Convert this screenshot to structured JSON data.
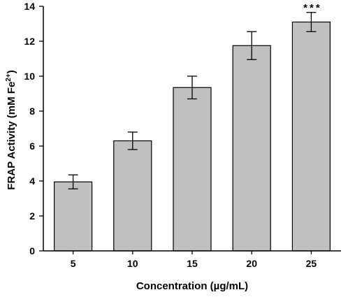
{
  "chart_data": {
    "type": "bar",
    "title": "",
    "xlabel": "Concentration (µg/mL)",
    "ylabel_main": "FRAP Activity (mM Fe",
    "ylabel_sup": "2+",
    "ylabel_close": ")",
    "categories": [
      "5",
      "10",
      "15",
      "20",
      "25"
    ],
    "values": [
      3.95,
      6.3,
      9.35,
      11.75,
      13.1
    ],
    "errors": [
      0.4,
      0.5,
      0.65,
      0.8,
      0.55
    ],
    "annotations": [
      "",
      "",
      "",
      "",
      "***"
    ],
    "ylim": [
      0,
      14
    ],
    "yticks": [
      0,
      2,
      4,
      6,
      8,
      10,
      12,
      14
    ],
    "bar_color": "#c0c0c0",
    "grid": false,
    "legend": "none"
  }
}
